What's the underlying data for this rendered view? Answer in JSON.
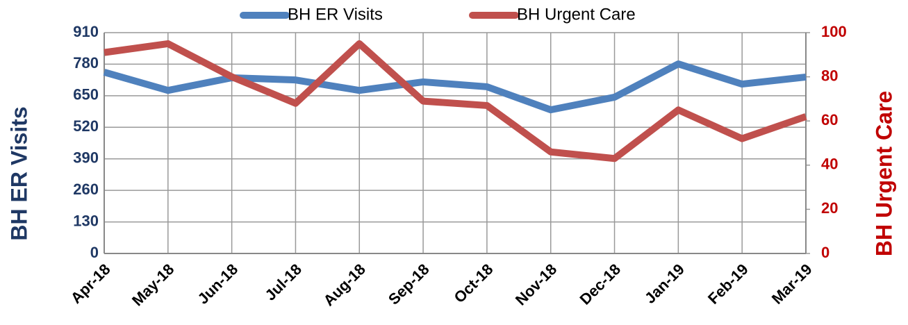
{
  "chart_data": {
    "type": "line",
    "categories": [
      "Apr-18",
      "May-18",
      "Jun-18",
      "Jul-18",
      "Aug-18",
      "Sep-18",
      "Oct-18",
      "Nov-18",
      "Dec-18",
      "Jan-19",
      "Feb-19",
      "Mar-19"
    ],
    "series": [
      {
        "name": "BH ER Visits",
        "color": "#4f81bd",
        "values": [
          747,
          672,
          724,
          715,
          672,
          707,
          687,
          592,
          644,
          781,
          698,
          727
        ]
      },
      {
        "name": "BH Urgent Care",
        "color": "#c0504d",
        "axis": "y2",
        "values": [
          91,
          95,
          80,
          68,
          95,
          69,
          67,
          46,
          43,
          65,
          52,
          62
        ]
      }
    ],
    "y_label": "BH ER Visits",
    "y2_label": "BH Urgent Care",
    "ylim": [
      0,
      910
    ],
    "yticks": [
      0,
      130,
      260,
      390,
      520,
      650,
      780,
      910
    ],
    "y2lim": [
      0,
      100
    ],
    "y2ticks": [
      0,
      20,
      40,
      60,
      80,
      100
    ],
    "grid": true,
    "legend": "top"
  }
}
